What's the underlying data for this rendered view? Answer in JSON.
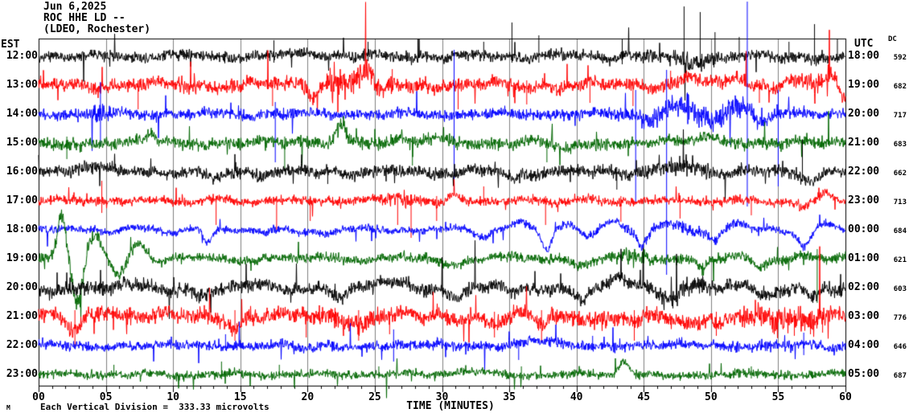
{
  "header": {
    "date": "Jun 6,2025",
    "station": "ROC HHE LD --",
    "network": "(LDEO, Rochester)"
  },
  "axis": {
    "left_tz": "EST",
    "right_tz": "UTC",
    "dc_header": "DC",
    "x_title": "TIME (MINUTES)",
    "x_tick_labels": [
      "00",
      "05",
      "10",
      "15",
      "20",
      "25",
      "30",
      "35",
      "40",
      "45",
      "50",
      "55",
      "60"
    ],
    "minutes_per_major_tick": 5,
    "footnote": "Each Vertical Division =  333.33 microvolts",
    "corner_glyph": "M"
  },
  "chart_data": {
    "type": "line",
    "title": "ROC HHE LD -- (LDEO, Rochester) helicorder seismogram, Jun 6,2025",
    "xlabel": "TIME (MINUTES)",
    "x_range_minutes": [
      0,
      60
    ],
    "grid": {
      "vertical_every_min": 5,
      "color": "#808080",
      "box_color": "#000000"
    },
    "vertical_division_microvolts": 333.33,
    "palette": {
      "black": "#000000",
      "red": "#ff0000",
      "blue": "#0000ff",
      "green": "#006600"
    },
    "row_color_cycle": [
      "black",
      "red",
      "blue",
      "green"
    ],
    "traces": [
      {
        "est": "12:00",
        "utc": "18:00",
        "dc": "592",
        "color": "black",
        "amp": 6.5,
        "wander": 2.5,
        "seed": 11,
        "bumps": [
          [
            20,
            1.5,
            4
          ],
          [
            48.6,
            2,
            -6
          ],
          [
            59,
            0.8,
            -5
          ]
        ],
        "bursts": [
          [
            48.5,
            2.5,
            0.5
          ]
        ],
        "impulses": [
          [
            17.5,
            20,
            8
          ],
          [
            24.5,
            18,
            6
          ],
          [
            28.2,
            22,
            8
          ],
          [
            33.1,
            18,
            6
          ],
          [
            35.2,
            42,
            8
          ],
          [
            37.2,
            26,
            8
          ],
          [
            43.4,
            22,
            10
          ],
          [
            48.0,
            62,
            10
          ],
          [
            49.2,
            55,
            12
          ],
          [
            50.3,
            30,
            10
          ],
          [
            52.1,
            24,
            8
          ],
          [
            55.8,
            18,
            8
          ],
          [
            57.7,
            40,
            10
          ],
          [
            59.4,
            22,
            8
          ]
        ]
      },
      {
        "est": "13:00",
        "utc": "19:00",
        "dc": "682",
        "color": "red",
        "amp": 8,
        "wander": 3.5,
        "seed": 22,
        "bumps": [
          [
            20.4,
            0.5,
            -12
          ],
          [
            22,
            0.8,
            8
          ],
          [
            24.3,
            0.8,
            16
          ],
          [
            25.3,
            0.5,
            -12
          ],
          [
            48.5,
            1,
            9
          ],
          [
            52,
            0.8,
            9
          ],
          [
            56,
            0.8,
            7
          ],
          [
            58.8,
            0.5,
            10
          ],
          [
            59.9,
            0.4,
            -16
          ]
        ],
        "bursts": [
          [
            23.5,
            2,
            1.0
          ],
          [
            58,
            1.5,
            0.7
          ]
        ],
        "impulses": [
          [
            7.4,
            6,
            30
          ],
          [
            17.4,
            6,
            26
          ],
          [
            26.3,
            20,
            8
          ],
          [
            31.2,
            8,
            30
          ],
          [
            36.3,
            6,
            24
          ],
          [
            41,
            6,
            22
          ],
          [
            44.2,
            8,
            26
          ],
          [
            47,
            18,
            6
          ],
          [
            53.6,
            6,
            22
          ]
        ]
      },
      {
        "est": "14:00",
        "utc": "20:00",
        "dc": "717",
        "color": "blue",
        "amp": 6.5,
        "wander": 2,
        "seed": 33,
        "bumps": [
          [
            45.5,
            1,
            -10
          ],
          [
            47.5,
            1.5,
            10
          ],
          [
            50,
            1,
            -8
          ],
          [
            52.4,
            1.2,
            12
          ],
          [
            53.6,
            0.8,
            -14
          ]
        ],
        "bursts": [
          [
            4.6,
            1,
            0.8
          ],
          [
            49.5,
            4.5,
            1.5
          ]
        ],
        "impulses": [
          [
            4.6,
            40,
            40
          ],
          [
            17.6,
            15,
            60
          ],
          [
            30.9,
            80,
            95
          ],
          [
            44.4,
            30,
            110
          ],
          [
            46.7,
            55,
            200
          ],
          [
            52.7,
            140,
            115
          ],
          [
            55.0,
            30,
            90
          ]
        ]
      },
      {
        "est": "15:00",
        "utc": "21:00",
        "dc": "683",
        "color": "green",
        "amp": 7,
        "wander": 2.5,
        "seed": 44,
        "bumps": [
          [
            8.3,
            0.35,
            14
          ],
          [
            22.5,
            0.55,
            26
          ],
          [
            30,
            1.5,
            5
          ],
          [
            39.2,
            0.7,
            -9
          ],
          [
            50,
            2,
            6
          ]
        ],
        "bursts": [
          [
            22.5,
            1,
            0.5
          ]
        ],
        "impulses": [
          [
            2.1,
            8,
            20
          ],
          [
            18.3,
            8,
            34
          ],
          [
            27.8,
            8,
            28
          ],
          [
            37.8,
            6,
            24
          ]
        ]
      },
      {
        "est": "16:00",
        "utc": "22:00",
        "dc": "662",
        "color": "black",
        "amp": 7,
        "wander": 3,
        "seed": 55,
        "bumps": [
          [
            3.5,
            1.2,
            8
          ],
          [
            13,
            1,
            -8
          ],
          [
            35.3,
            0.8,
            -8
          ],
          [
            47.8,
            1.5,
            8
          ],
          [
            57,
            1,
            -6
          ]
        ],
        "bursts": [
          [
            47.8,
            2,
            0.6
          ]
        ],
        "impulses": [
          [
            21.5,
            6,
            15
          ],
          [
            43,
            6,
            22
          ],
          [
            56.8,
            40,
            8
          ]
        ]
      },
      {
        "est": "17:00",
        "utc": "23:00",
        "dc": "713",
        "color": "red",
        "amp": 5.5,
        "wander": 2,
        "seed": 66,
        "bumps": [
          [
            26.8,
            1,
            6
          ],
          [
            29.8,
            0.6,
            -8
          ],
          [
            30.8,
            0.8,
            8
          ],
          [
            56.8,
            0.8,
            -9
          ],
          [
            58.6,
            0.7,
            10
          ]
        ],
        "bursts": [
          [
            27,
            1.5,
            0.8
          ]
        ],
        "impulses": [
          [
            4.7,
            25,
            15
          ],
          [
            13.2,
            6,
            30
          ],
          [
            17.7,
            6,
            36
          ],
          [
            20.2,
            6,
            25
          ],
          [
            26.7,
            8,
            30
          ],
          [
            27.7,
            8,
            46
          ],
          [
            29.6,
            6,
            25
          ],
          [
            33.1,
            18,
            6
          ],
          [
            37.7,
            6,
            30
          ],
          [
            43.3,
            6,
            26
          ],
          [
            47.7,
            6,
            22
          ],
          [
            53,
            6,
            18
          ]
        ]
      },
      {
        "est": "18:00",
        "utc": "00:00",
        "dc": "684",
        "color": "blue",
        "amp": 4.5,
        "wander": 3,
        "seed": 77,
        "bumps": [
          [
            12.6,
            0.45,
            -18
          ],
          [
            19.5,
            0.8,
            -6
          ],
          [
            33,
            0.6,
            -6
          ],
          [
            36,
            1.2,
            6
          ],
          [
            37.8,
            0.5,
            -24
          ],
          [
            39.5,
            1,
            8
          ],
          [
            40.8,
            0.8,
            -12
          ],
          [
            42.5,
            1.2,
            8
          ],
          [
            44.9,
            0.5,
            -18
          ],
          [
            46.5,
            1,
            6
          ],
          [
            50.3,
            0.5,
            -14
          ],
          [
            52,
            1,
            6
          ],
          [
            56.9,
            0.6,
            -20
          ],
          [
            58.5,
            0.8,
            4
          ]
        ],
        "bursts": [
          [
            48,
            4,
            0.4
          ]
        ],
        "impulses": []
      },
      {
        "est": "19:00",
        "utc": "01:00",
        "dc": "621",
        "color": "green",
        "amp": 6,
        "wander": 2.5,
        "seed": 88,
        "bumps": [
          [
            1.7,
            0.45,
            55
          ],
          [
            2.9,
            0.5,
            -58
          ],
          [
            4.2,
            0.7,
            26
          ],
          [
            5.9,
            0.6,
            -20
          ],
          [
            7.4,
            0.8,
            20
          ],
          [
            9,
            0.5,
            -6
          ],
          [
            30.6,
            0.8,
            -9
          ],
          [
            40.2,
            0.7,
            -7
          ],
          [
            49.3,
            0.4,
            -11
          ],
          [
            53.6,
            0.6,
            -13
          ],
          [
            57,
            1,
            5
          ]
        ],
        "bursts": [
          [
            2.5,
            1.5,
            1.0
          ],
          [
            44,
            2,
            0.4
          ]
        ],
        "impulses": [
          [
            57.9,
            12,
            55
          ]
        ]
      },
      {
        "est": "20:00",
        "utc": "02:00",
        "dc": "603",
        "color": "black",
        "amp": 8,
        "wander": 4,
        "seed": 99,
        "bumps": [
          [
            12.2,
            0.8,
            -10
          ],
          [
            22.4,
            0.7,
            -13
          ],
          [
            27,
            1.2,
            8
          ],
          [
            30.9,
            0.9,
            -11
          ],
          [
            35.1,
            0.7,
            -8
          ],
          [
            40.4,
            0.7,
            -13
          ],
          [
            43,
            1,
            8
          ],
          [
            46.9,
            0.7,
            -14
          ],
          [
            49,
            1,
            6
          ],
          [
            53.9,
            0.9,
            -13
          ],
          [
            57.6,
            0.6,
            -9
          ]
        ],
        "bursts": [
          [
            48,
            2,
            0.5
          ]
        ],
        "impulses": []
      },
      {
        "est": "21:00",
        "utc": "03:00",
        "dc": "776",
        "color": "red",
        "amp": 9.5,
        "wander": 4,
        "seed": 110,
        "bumps": [
          [
            2.6,
            0.8,
            -16
          ],
          [
            5,
            1.5,
            8
          ],
          [
            14.7,
            0.6,
            -12
          ],
          [
            24,
            0.8,
            -10
          ],
          [
            34,
            0.8,
            -8
          ],
          [
            37.5,
            0.6,
            -12
          ],
          [
            44.4,
            0.6,
            -12
          ],
          [
            47.8,
            1,
            -10
          ],
          [
            50.5,
            0.5,
            -10
          ],
          [
            55.5,
            1.5,
            -8
          ],
          [
            59,
            0.8,
            6
          ]
        ],
        "bursts": [
          [
            22,
            3,
            0.4
          ],
          [
            56,
            2.5,
            0.9
          ]
        ],
        "impulses": [
          [
            2.7,
            8,
            38
          ],
          [
            14.6,
            8,
            30
          ],
          [
            19.9,
            6,
            26
          ],
          [
            23.8,
            8,
            30
          ],
          [
            26.1,
            6,
            22
          ],
          [
            33.9,
            6,
            26
          ],
          [
            37.4,
            8,
            32
          ],
          [
            44.3,
            8,
            30
          ],
          [
            50.4,
            6,
            24
          ],
          [
            54.6,
            6,
            20
          ],
          [
            56.2,
            8,
            24
          ],
          [
            57.4,
            6,
            22
          ],
          [
            58.3,
            6,
            20
          ]
        ]
      },
      {
        "est": "22:00",
        "utc": "04:00",
        "dc": "646",
        "color": "blue",
        "amp": 6,
        "wander": 1.8,
        "seed": 121,
        "bumps": [
          [
            20,
            1,
            -5
          ],
          [
            37,
            1.5,
            5
          ],
          [
            59,
            0.5,
            -5
          ]
        ],
        "bursts": [],
        "impulses": [
          [
            13.9,
            14,
            6
          ],
          [
            26.4,
            20,
            20
          ],
          [
            35.7,
            6,
            18
          ],
          [
            41.2,
            12,
            6
          ],
          [
            56.9,
            16,
            12
          ]
        ]
      },
      {
        "est": "23:00",
        "utc": "05:00",
        "dc": "687",
        "color": "green",
        "amp": 5,
        "wander": 1.6,
        "seed": 132,
        "bumps": [
          [
            32,
            1.5,
            4
          ],
          [
            43.5,
            0.55,
            16
          ],
          [
            47,
            0.8,
            -5
          ]
        ],
        "bursts": [],
        "impulses": [
          [
            5.6,
            12,
            5
          ],
          [
            13.6,
            16,
            6
          ],
          [
            17.9,
            12,
            5
          ],
          [
            25.3,
            10,
            5
          ],
          [
            35.9,
            10,
            5
          ],
          [
            53,
            10,
            5
          ]
        ]
      }
    ]
  }
}
